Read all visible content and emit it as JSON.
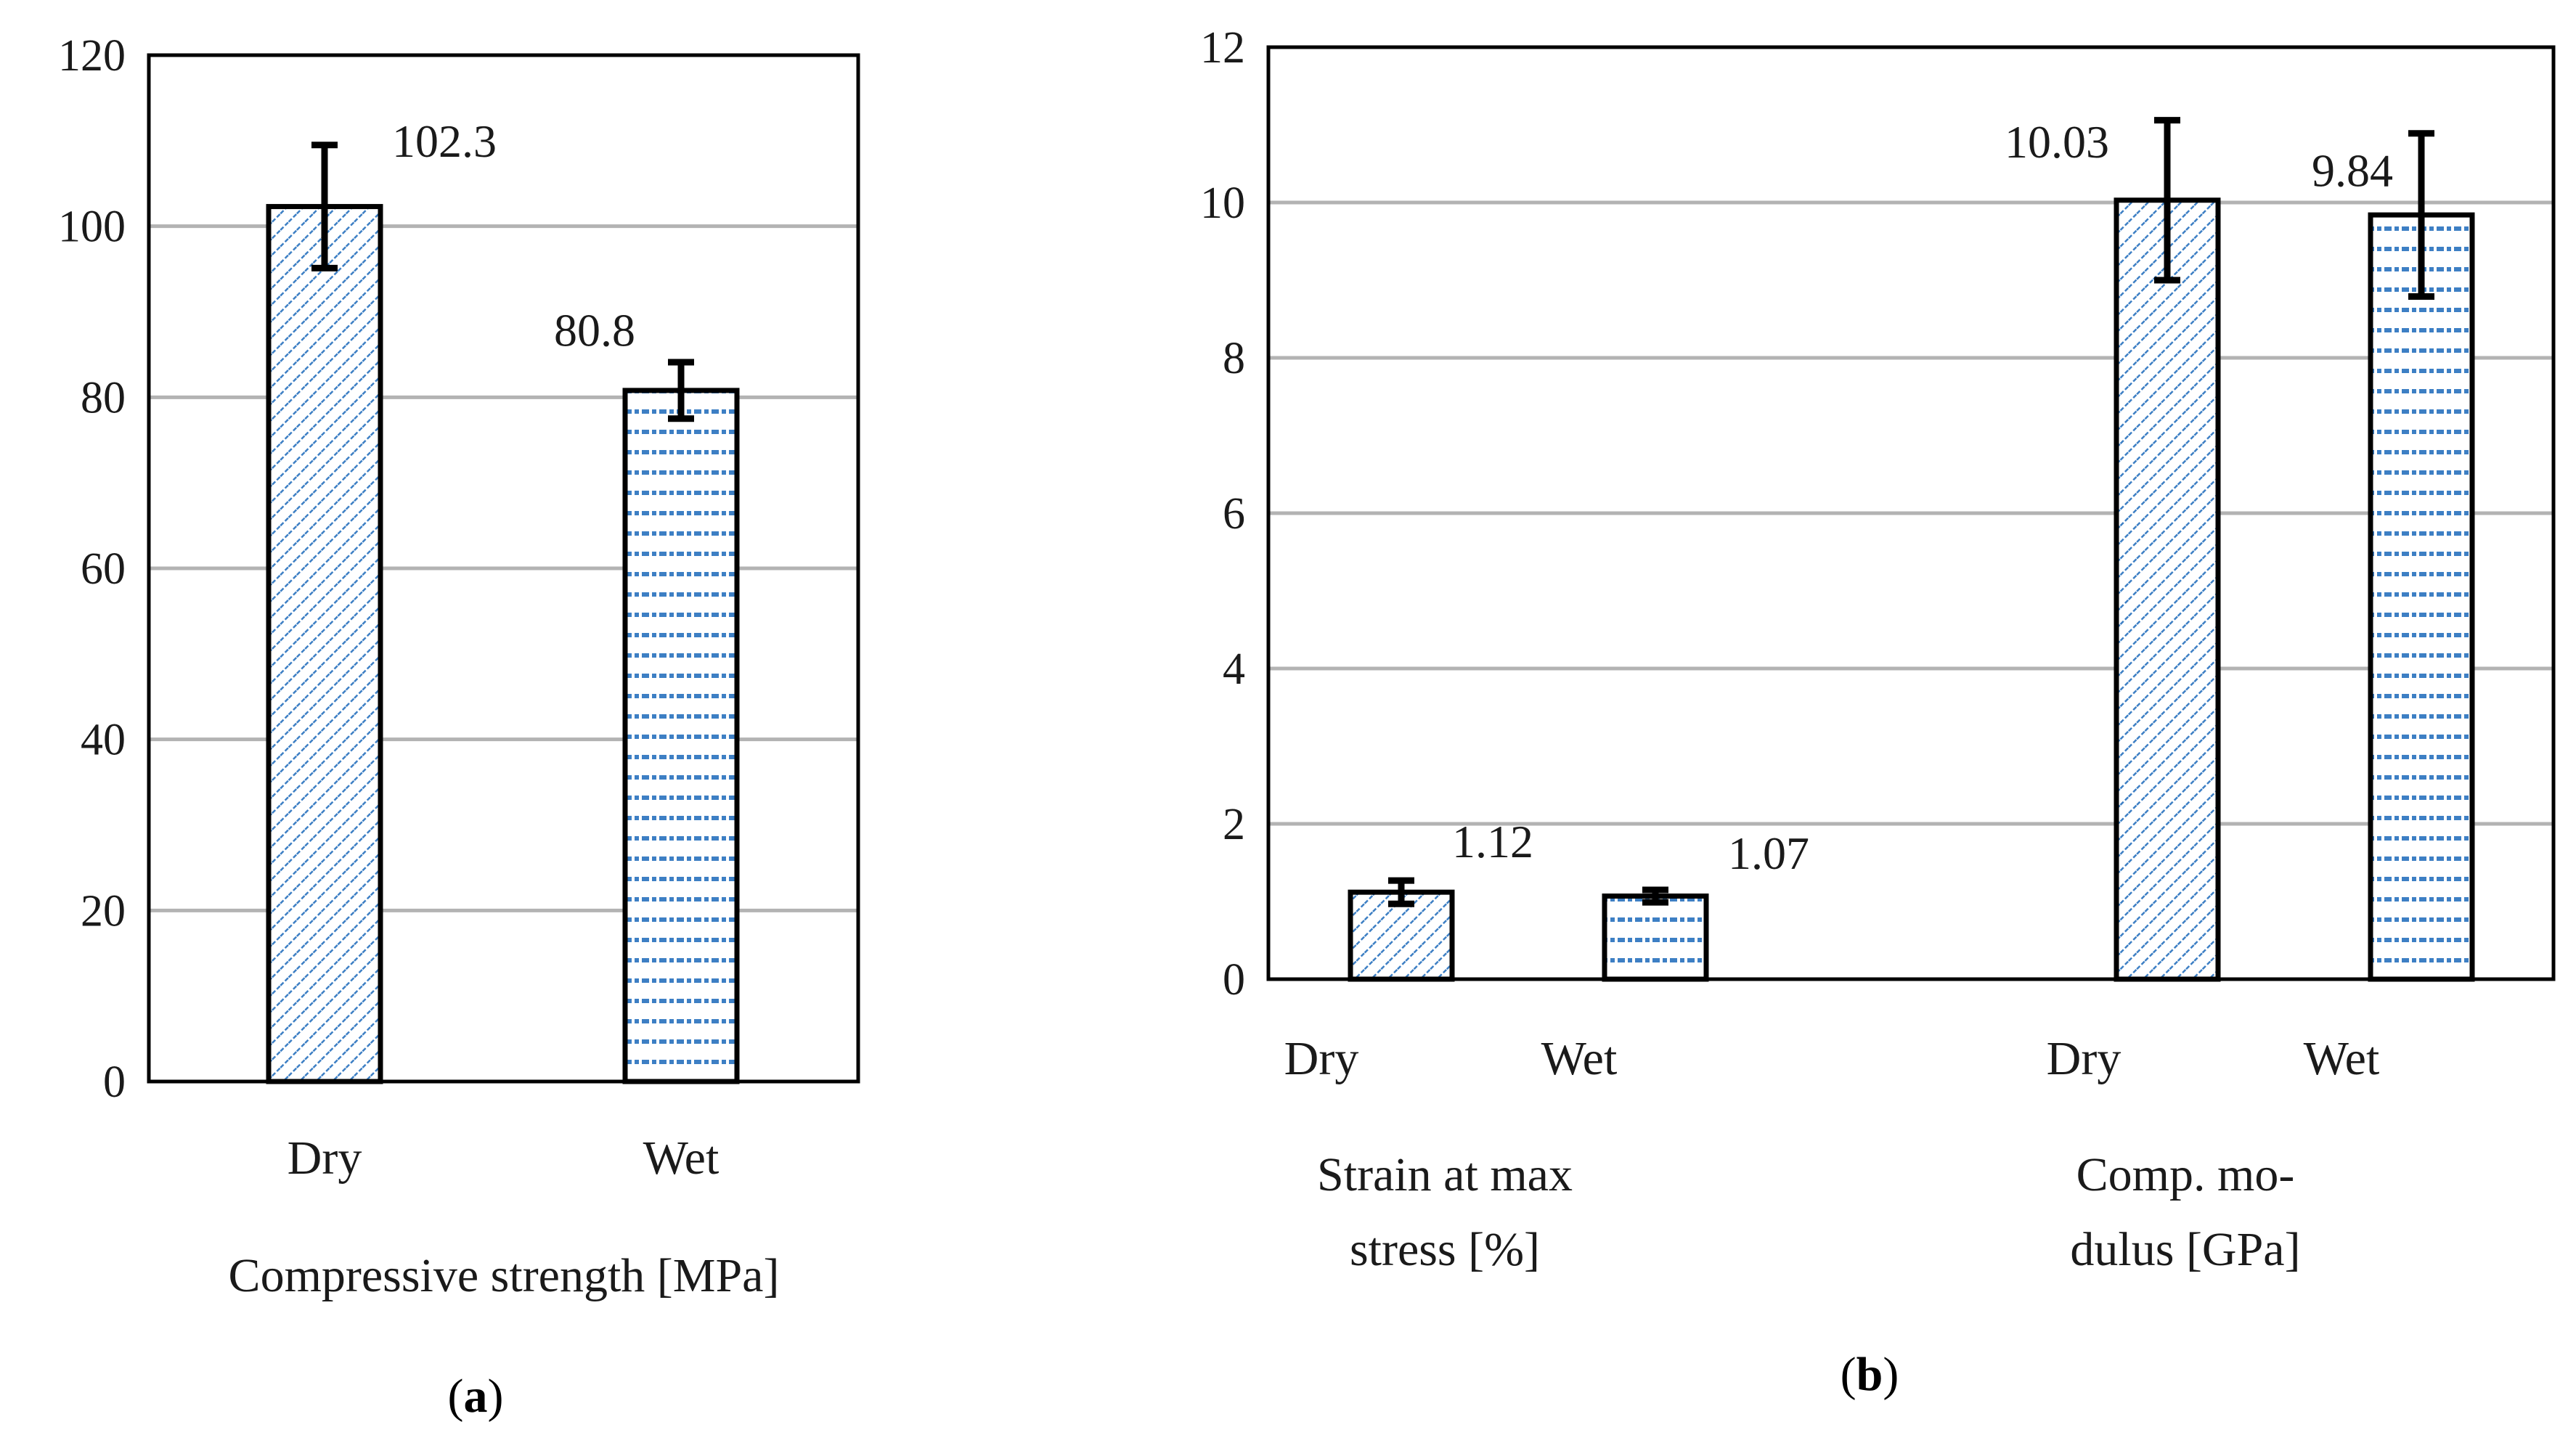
{
  "chart_data": [
    {
      "type": "bar",
      "panel_label": "a",
      "title": "",
      "group_label": "Compressive strength [MPa]",
      "xlabel": "",
      "ylabel": "",
      "ylim": [
        0,
        120
      ],
      "yticks": [
        0,
        20,
        40,
        60,
        80,
        100,
        120
      ],
      "grid": true,
      "categories": [
        "Dry",
        "Wet"
      ],
      "values": [
        102.3,
        80.8
      ],
      "value_labels": [
        "102.3",
        "80.8"
      ],
      "errors": [
        7.2,
        3.3
      ],
      "patterns": [
        "diagonal",
        "dashed"
      ]
    },
    {
      "type": "bar",
      "panel_label": "b",
      "title": "",
      "xlabel": "",
      "ylabel": "",
      "ylim": [
        0,
        12
      ],
      "yticks": [
        0,
        2,
        4,
        6,
        8,
        10,
        12
      ],
      "grid": true,
      "groups": [
        {
          "label_lines": [
            "Strain at max",
            "stress [%]"
          ],
          "categories": [
            "Dry",
            "Wet"
          ],
          "values": [
            1.12,
            1.07
          ],
          "value_labels": [
            "1.12",
            "1.07"
          ],
          "errors": [
            0.15,
            0.08
          ],
          "patterns": [
            "diagonal",
            "dashed"
          ]
        },
        {
          "label_lines": [
            "Comp. mo-",
            "dulus [GPa]"
          ],
          "categories": [
            "Dry",
            "Wet"
          ],
          "values": [
            10.03,
            9.84
          ],
          "value_labels": [
            "10.03",
            "9.84"
          ],
          "errors": [
            1.03,
            1.05
          ],
          "patterns": [
            "diagonal",
            "dashed"
          ]
        }
      ]
    }
  ],
  "colors": {
    "pattern": "#3d7fc4",
    "bar_edge": "#000000",
    "grid": "#b3b3b3",
    "axis": "#000000"
  }
}
